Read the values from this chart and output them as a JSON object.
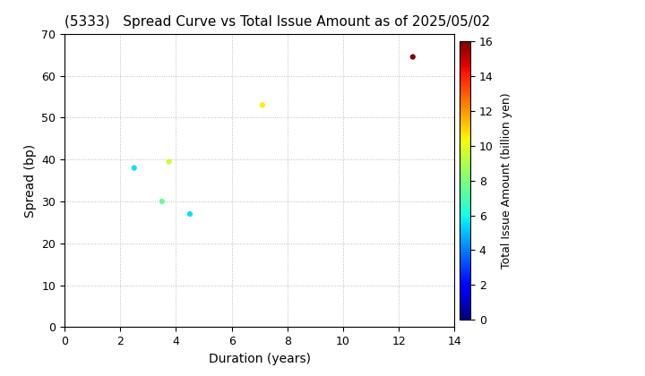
{
  "title": "(5333)   Spread Curve vs Total Issue Amount as of 2025/05/02",
  "xlabel": "Duration (years)",
  "ylabel": "Spread (bp)",
  "colorbar_label": "Total Issue Amount (billion yen)",
  "xlim": [
    0,
    14
  ],
  "ylim": [
    0,
    70
  ],
  "xticks": [
    0,
    2,
    4,
    6,
    8,
    10,
    12,
    14
  ],
  "yticks": [
    0,
    10,
    20,
    30,
    40,
    50,
    60,
    70
  ],
  "colorbar_min": 0,
  "colorbar_max": 16,
  "colorbar_ticks": [
    0,
    2,
    4,
    6,
    8,
    10,
    12,
    14,
    16
  ],
  "points": [
    {
      "duration": 2.5,
      "spread": 38,
      "amount": 5.5
    },
    {
      "duration": 3.5,
      "spread": 30,
      "amount": 7.5
    },
    {
      "duration": 3.75,
      "spread": 39.5,
      "amount": 9.5
    },
    {
      "duration": 4.5,
      "spread": 27,
      "amount": 5.5
    },
    {
      "duration": 7.1,
      "spread": 53,
      "amount": 10.5
    },
    {
      "duration": 12.5,
      "spread": 64.5,
      "amount": 16.0
    }
  ],
  "marker_size": 20,
  "colormap": "jet",
  "background_color": "#ffffff",
  "grid_color": "#bbbbbb",
  "grid_style": "dotted",
  "title_fontsize": 11,
  "axis_fontsize": 10,
  "tick_fontsize": 9,
  "cbar_fontsize": 9
}
